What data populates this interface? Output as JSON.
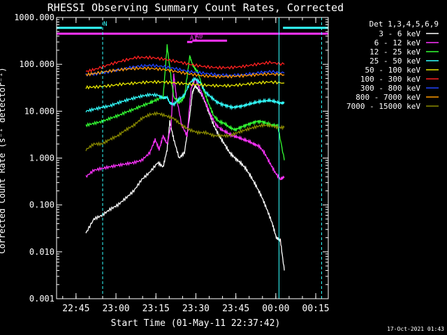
{
  "chart_data": {
    "type": "line",
    "title": "RHESSI Observing Summary Count Rates, Corrected",
    "ylabel": "Corrected Count Rate (s⁻¹ detector⁻¹)",
    "xlabel": "Start Time (01-May-11 22:37:42)",
    "y_scale": "log",
    "ylim": [
      0.001,
      1000
    ],
    "xlim_minutes_from_start": [
      0,
      102
    ],
    "ytick_labels": [
      "0.001",
      "0.010",
      "0.100",
      "1.000",
      "10.000",
      "100.000",
      "1000.000"
    ],
    "xtick_labels": [
      "22:45",
      "23:00",
      "23:15",
      "23:30",
      "23:45",
      "00:00",
      "00:15"
    ],
    "xtick_minutes_from_start": [
      7.3,
      22.3,
      37.3,
      52.3,
      67.3,
      82.3,
      97.3
    ],
    "legend": {
      "title": "Det 1,3,4,5,6,9",
      "placement": "right-outside",
      "entries": [
        {
          "label": "3 - 6 keV",
          "color": "#ffffff"
        },
        {
          "label": "6 - 12 keV",
          "color": "#ff33ff"
        },
        {
          "label": "12 - 25 keV",
          "color": "#33ff33"
        },
        {
          "label": "25 - 50 keV",
          "color": "#33ffff"
        },
        {
          "label": "50 - 100 keV",
          "color": "#e6e600"
        },
        {
          "label": "100 - 300 keV",
          "color": "#ff2020"
        },
        {
          "label": "300 - 800 keV",
          "color": "#2244ff"
        },
        {
          "label": "800 - 7000 keV",
          "color": "#ff9900"
        },
        {
          "label": "7000 - 15000 keV",
          "color": "#8b8b00"
        }
      ]
    },
    "series": [
      {
        "name": "3 - 6 keV",
        "color": "#ffffff",
        "x": [
          11,
          14,
          17,
          20,
          23,
          26,
          29,
          32,
          35,
          38,
          40,
          41.5,
          42.5,
          44,
          46,
          48,
          50,
          51,
          52,
          53,
          55,
          57,
          59,
          61,
          63,
          65,
          67,
          69,
          71,
          73,
          75,
          77,
          79,
          81,
          82.5,
          84,
          85.5
        ],
        "y": [
          0.025,
          0.05,
          0.06,
          0.08,
          0.1,
          0.14,
          0.2,
          0.35,
          0.5,
          0.8,
          0.65,
          1.5,
          6,
          2.5,
          1,
          1.3,
          8,
          25,
          35,
          30,
          20,
          10,
          5,
          3,
          2,
          1.3,
          1,
          0.8,
          0.6,
          0.4,
          0.25,
          0.15,
          0.08,
          0.04,
          0.02,
          0.018,
          0.004
        ]
      },
      {
        "name": "6 - 12 keV",
        "color": "#ff33ff",
        "x": [
          11,
          14,
          17,
          20,
          23,
          26,
          29,
          32,
          35,
          37,
          38.5,
          40,
          41.5,
          43,
          44,
          45,
          47,
          49,
          50.5,
          52,
          54,
          56,
          58,
          60,
          62,
          64,
          66,
          68,
          70,
          72,
          74,
          76,
          78,
          80,
          82,
          84,
          85.5
        ],
        "y": [
          0.4,
          0.55,
          0.6,
          0.65,
          0.7,
          0.75,
          0.8,
          0.9,
          1.3,
          2.5,
          1.5,
          3,
          2,
          5,
          60,
          20,
          5,
          3,
          30,
          50,
          28,
          15,
          8,
          5,
          4,
          3.5,
          3,
          2.8,
          2.5,
          2.3,
          2,
          1.8,
          1.3,
          0.8,
          0.5,
          0.35,
          0.4
        ]
      },
      {
        "name": "12 - 25 keV",
        "color": "#33ff33",
        "x": [
          11,
          14,
          17,
          20,
          23,
          26,
          29,
          32,
          35,
          37,
          40,
          41.5,
          43,
          44,
          46,
          48,
          50,
          51,
          52,
          53,
          55,
          57,
          59,
          61,
          63,
          65,
          67,
          69,
          71,
          73,
          75,
          77,
          79,
          81,
          83,
          85.5
        ],
        "y": [
          5,
          5.5,
          6,
          7,
          8,
          9.5,
          11,
          13,
          15,
          17,
          20,
          250,
          50,
          20,
          15,
          20,
          150,
          100,
          80,
          70,
          30,
          15,
          8,
          6,
          5.5,
          4.5,
          4,
          4.5,
          5,
          5.5,
          6,
          6,
          5.5,
          5,
          5,
          0.9
        ]
      },
      {
        "name": "25 - 50 keV",
        "color": "#33ffff",
        "x": [
          11,
          14,
          17,
          20,
          23,
          26,
          29,
          32,
          35,
          38,
          40,
          41.5,
          42.5,
          44,
          46,
          48,
          50,
          52,
          54,
          56,
          58,
          60,
          62,
          64,
          66,
          68,
          70,
          72,
          74,
          76,
          78,
          80,
          82,
          84,
          85.5
        ],
        "y": [
          10,
          11,
          12,
          13,
          15,
          17,
          19,
          21,
          22.5,
          22,
          19,
          20,
          15,
          14,
          18,
          22,
          40,
          50,
          40,
          25,
          20,
          16,
          14,
          13,
          12,
          12.5,
          13,
          14,
          15,
          16,
          16.5,
          17,
          16,
          15,
          15
        ]
      },
      {
        "name": "50 - 100 keV",
        "color": "#e6e600",
        "x": [
          11,
          15,
          20,
          25,
          30,
          35,
          40,
          45,
          50,
          55,
          60,
          65,
          70,
          75,
          80,
          85.5
        ],
        "y": [
          32,
          33,
          35,
          38,
          40,
          42,
          42,
          40,
          38,
          36,
          35,
          35,
          37,
          40,
          42,
          40
        ]
      },
      {
        "name": "100 - 300 keV",
        "color": "#ff2020",
        "x": [
          11,
          15,
          20,
          25,
          30,
          35,
          40,
          45,
          50,
          55,
          60,
          65,
          70,
          75,
          80,
          85.5
        ],
        "y": [
          70,
          80,
          100,
          120,
          140,
          140,
          130,
          115,
          100,
          90,
          85,
          85,
          90,
          100,
          110,
          100
        ]
      },
      {
        "name": "300 - 800 keV",
        "color": "#2244ff",
        "x": [
          11,
          15,
          20,
          25,
          30,
          35,
          40,
          45,
          50,
          55,
          60,
          65,
          70,
          75,
          80,
          85.5
        ],
        "y": [
          60,
          63,
          70,
          80,
          90,
          95,
          90,
          80,
          70,
          65,
          60,
          58,
          60,
          65,
          70,
          65
        ]
      },
      {
        "name": "800 - 7000 keV",
        "color": "#ff9900",
        "x": [
          11,
          15,
          20,
          25,
          30,
          35,
          40,
          45,
          50,
          55,
          60,
          65,
          70,
          75,
          80,
          85.5
        ],
        "y": [
          60,
          65,
          72,
          78,
          82,
          82,
          78,
          70,
          62,
          57,
          55,
          55,
          57,
          60,
          62,
          60
        ]
      },
      {
        "name": "7000 - 15000 keV",
        "color": "#8b8b00",
        "x": [
          11,
          14,
          17,
          20,
          23,
          26,
          29,
          32,
          35,
          38,
          41,
          44,
          47,
          50,
          53,
          56,
          59,
          62,
          65,
          68,
          71,
          74,
          77,
          80,
          83,
          85.5
        ],
        "y": [
          1.5,
          2,
          2,
          2.5,
          3,
          4,
          5,
          7,
          8.5,
          9,
          8,
          7,
          5,
          4,
          3.5,
          3.5,
          3,
          3,
          3,
          3.5,
          4,
          4.5,
          5,
          5,
          4.5,
          4.5
        ]
      }
    ],
    "flags": [
      {
        "label": "N",
        "color": "#33ffff",
        "y_value": 600,
        "segments": [
          [
            0,
            17
          ],
          [
            85,
            102
          ]
        ]
      },
      {
        "label": "",
        "color": "#ff33ff",
        "y_value": 450,
        "segments": [
          [
            0,
            102
          ]
        ]
      },
      {
        "label": "A0",
        "color": "#ff33ff",
        "y_value": 320,
        "segments": [
          [
            51,
            64
          ]
        ]
      },
      {
        "label": "A1",
        "color": "#ff33ff",
        "y_value": 300,
        "segments": [
          [
            49,
            51
          ]
        ]
      }
    ],
    "vertical_markers": [
      {
        "x_minutes_from_start": 17.3,
        "color": "#33ffff",
        "style": "dashed"
      },
      {
        "x_minutes_from_start": 83.5,
        "color": "#33ffff",
        "style": "solid"
      },
      {
        "x_minutes_from_start": 99.5,
        "color": "#33ffff",
        "style": "dashed"
      }
    ],
    "grid": false
  },
  "footer": {
    "timestamp": "17-Oct-2021 01:43"
  }
}
